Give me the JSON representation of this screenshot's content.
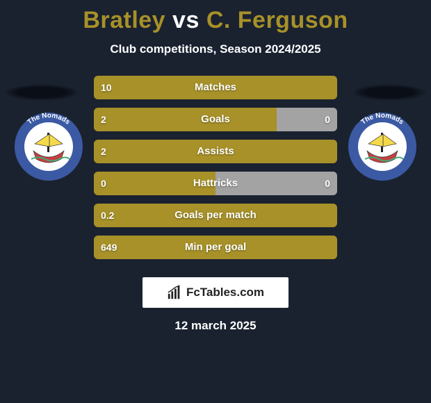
{
  "title": {
    "player1": "Bratley",
    "vs": "vs",
    "player2": "C. Ferguson",
    "player1_color": "#a79128",
    "vs_color": "#ffffff",
    "player2_color": "#a79128"
  },
  "subtitle": "Club competitions, Season 2024/2025",
  "colors": {
    "background": "#1a2230",
    "bar_track": "#2a3344",
    "bar_left": "#a79128",
    "bar_right": "#a3a3a3",
    "text": "#ffffff"
  },
  "badge": {
    "ring_color": "#3b5aa3",
    "ring_text": "The Nomads",
    "ring_text_color": "#ffffff",
    "inner_bg": "#ffffff",
    "ship_hull": "#c44040",
    "ship_sail": "#f5d94a",
    "ship_mast": "#222222"
  },
  "bars": [
    {
      "label": "Matches",
      "left_value": "10",
      "right_value": "",
      "left_pct": 100,
      "right_pct": 0
    },
    {
      "label": "Goals",
      "left_value": "2",
      "right_value": "0",
      "left_pct": 75,
      "right_pct": 25
    },
    {
      "label": "Assists",
      "left_value": "2",
      "right_value": "",
      "left_pct": 100,
      "right_pct": 0
    },
    {
      "label": "Hattricks",
      "left_value": "0",
      "right_value": "0",
      "left_pct": 50,
      "right_pct": 50
    },
    {
      "label": "Goals per match",
      "left_value": "0.2",
      "right_value": "",
      "left_pct": 100,
      "right_pct": 0
    },
    {
      "label": "Min per goal",
      "left_value": "649",
      "right_value": "",
      "left_pct": 100,
      "right_pct": 0
    }
  ],
  "footer": {
    "brand": "FcTables.com"
  },
  "date": "12 march 2025"
}
